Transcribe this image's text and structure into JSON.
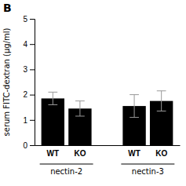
{
  "chart_data": {
    "type": "bar",
    "title": "B",
    "y_label": "serum FITC-dextran (μg/ml)",
    "categories": [
      "WT",
      "KO",
      "WT",
      "KO"
    ],
    "values": [
      1.85,
      1.45,
      1.55,
      1.75
    ],
    "errors": [
      0.25,
      0.3,
      0.45,
      0.4
    ],
    "color": "black",
    "annotations": [
      "nectin-2",
      "nectin-3"
    ],
    "ylim": [
      0,
      5
    ],
    "yticks": [
      0,
      1,
      2,
      3,
      4,
      5
    ],
    "grid": false
  }
}
